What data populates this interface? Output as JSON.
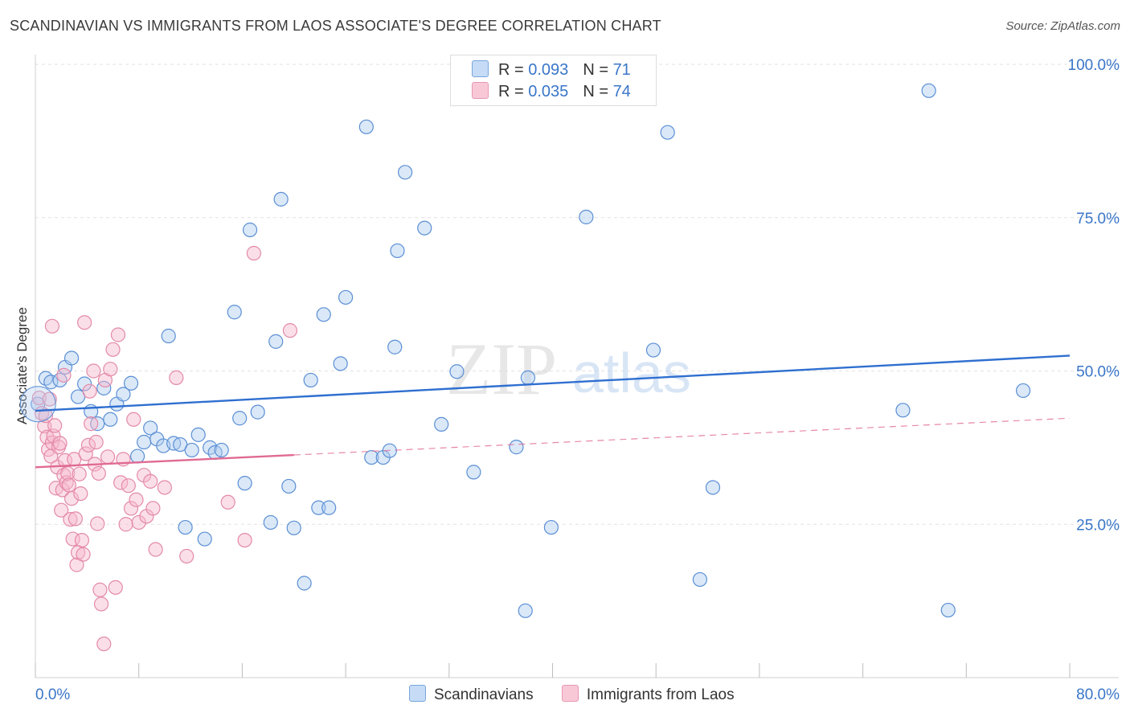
{
  "title": "SCANDINAVIAN VS IMMIGRANTS FROM LAOS ASSOCIATE'S DEGREE CORRELATION CHART",
  "source": "Source: ZipAtlas.com",
  "watermark": {
    "zip": "ZIP",
    "atlas": "atlas"
  },
  "legend": {
    "rows": [
      {
        "r_label": "R = ",
        "r_value": "0.093",
        "n_label": "N = ",
        "n_value": "71"
      },
      {
        "r_label": "R = ",
        "r_value": "0.035",
        "n_label": "N = ",
        "n_value": "74"
      }
    ]
  },
  "chart_data": {
    "type": "scatter",
    "title": "SCANDINAVIAN VS IMMIGRANTS FROM LAOS ASSOCIATE'S DEGREE CORRELATION CHART",
    "xlabel": "",
    "ylabel": "Associate's Degree",
    "xlim": [
      0,
      80
    ],
    "ylim": [
      0,
      100
    ],
    "x_tick_labels": [
      "0.0%",
      "80.0%"
    ],
    "y_ticks": [
      25,
      50,
      75,
      100
    ],
    "y_tick_labels": [
      "25.0%",
      "50.0%",
      "75.0%",
      "100.0%"
    ],
    "grid": true,
    "colors": {
      "scandinavians_fill": "#aecbf0",
      "scandinavians_stroke": "#5b8fd4",
      "scandinavians_line": "#2f6fd0",
      "laos_fill": "#f7b9cc",
      "laos_stroke": "#e38aa8",
      "laos_line": "#e06a93",
      "axis_label": "#3a76c8",
      "grid": "#e2e2e2"
    },
    "series": [
      {
        "name": "Scandinavians",
        "r": 0.093,
        "n": 71,
        "trend": {
          "x": [
            0,
            80
          ],
          "y": [
            43.5,
            52.5
          ],
          "dashed_from": null
        },
        "points": [
          [
            0.2,
            44.6
          ],
          [
            0.8,
            48.8
          ],
          [
            1.2,
            48.2
          ],
          [
            1.9,
            48.5
          ],
          [
            2.3,
            50.6
          ],
          [
            2.8,
            52.1
          ],
          [
            3.3,
            45.8
          ],
          [
            3.8,
            47.9
          ],
          [
            4.3,
            43.4
          ],
          [
            4.8,
            41.4
          ],
          [
            5.3,
            47.2
          ],
          [
            5.8,
            42.1
          ],
          [
            6.3,
            44.6
          ],
          [
            6.8,
            46.2
          ],
          [
            7.4,
            48.0
          ],
          [
            7.9,
            36.1
          ],
          [
            8.4,
            38.4
          ],
          [
            8.9,
            40.7
          ],
          [
            9.4,
            38.9
          ],
          [
            9.9,
            37.8
          ],
          [
            10.3,
            55.7
          ],
          [
            10.7,
            38.2
          ],
          [
            11.2,
            38.0
          ],
          [
            11.6,
            24.5
          ],
          [
            12.1,
            37.1
          ],
          [
            12.6,
            39.6
          ],
          [
            13.1,
            22.6
          ],
          [
            13.5,
            37.5
          ],
          [
            13.9,
            36.7
          ],
          [
            14.4,
            37.1
          ],
          [
            15.4,
            59.6
          ],
          [
            15.8,
            42.3
          ],
          [
            16.2,
            31.7
          ],
          [
            16.6,
            73.0
          ],
          [
            17.2,
            43.3
          ],
          [
            18.2,
            25.3
          ],
          [
            18.6,
            54.8
          ],
          [
            19.0,
            78.0
          ],
          [
            19.6,
            31.2
          ],
          [
            20.0,
            24.4
          ],
          [
            20.8,
            15.4
          ],
          [
            21.3,
            48.5
          ],
          [
            21.9,
            27.7
          ],
          [
            22.3,
            59.2
          ],
          [
            22.7,
            27.7
          ],
          [
            23.6,
            51.2
          ],
          [
            24.0,
            62.0
          ],
          [
            25.6,
            89.8
          ],
          [
            26.0,
            35.9
          ],
          [
            26.9,
            35.9
          ],
          [
            27.4,
            37.0
          ],
          [
            27.8,
            53.9
          ],
          [
            28.0,
            69.6
          ],
          [
            28.6,
            82.4
          ],
          [
            30.1,
            73.3
          ],
          [
            31.4,
            41.3
          ],
          [
            32.6,
            49.9
          ],
          [
            33.9,
            33.5
          ],
          [
            37.2,
            37.6
          ],
          [
            37.9,
            10.9
          ],
          [
            38.1,
            48.9
          ],
          [
            39.9,
            24.5
          ],
          [
            42.6,
            75.1
          ],
          [
            47.8,
            53.4
          ],
          [
            48.9,
            88.9
          ],
          [
            51.4,
            16.0
          ],
          [
            52.4,
            31.0
          ],
          [
            67.1,
            43.6
          ],
          [
            69.1,
            95.7
          ],
          [
            70.6,
            11.0
          ],
          [
            76.4,
            46.8
          ]
        ]
      },
      {
        "name": "Immigrants from Laos",
        "r": 0.035,
        "n": 74,
        "trend": {
          "x": [
            0,
            80
          ],
          "y": [
            34.3,
            42.3
          ],
          "solid_until_x": 20
        },
        "points": [
          [
            0.3,
            45.6
          ],
          [
            0.5,
            43.1
          ],
          [
            0.7,
            41.0
          ],
          [
            0.9,
            39.2
          ],
          [
            1.0,
            37.2
          ],
          [
            1.1,
            45.4
          ],
          [
            1.2,
            36.1
          ],
          [
            1.3,
            38.3
          ],
          [
            1.4,
            39.4
          ],
          [
            1.5,
            41.1
          ],
          [
            1.6,
            30.9
          ],
          [
            1.7,
            34.3
          ],
          [
            1.8,
            37.6
          ],
          [
            1.9,
            38.2
          ],
          [
            2.0,
            27.3
          ],
          [
            2.1,
            30.6
          ],
          [
            2.2,
            33.0
          ],
          [
            2.3,
            35.4
          ],
          [
            2.4,
            31.8
          ],
          [
            2.5,
            33.3
          ],
          [
            2.6,
            31.4
          ],
          [
            2.7,
            25.8
          ],
          [
            2.8,
            29.2
          ],
          [
            2.9,
            22.6
          ],
          [
            3.0,
            35.6
          ],
          [
            3.1,
            25.9
          ],
          [
            3.2,
            18.4
          ],
          [
            3.3,
            20.4
          ],
          [
            3.4,
            33.2
          ],
          [
            3.5,
            30.0
          ],
          [
            3.6,
            22.4
          ],
          [
            3.7,
            20.1
          ],
          [
            3.8,
            57.9
          ],
          [
            3.9,
            36.5
          ],
          [
            4.1,
            37.9
          ],
          [
            4.2,
            46.7
          ],
          [
            4.3,
            41.4
          ],
          [
            4.5,
            50.0
          ],
          [
            4.6,
            34.8
          ],
          [
            4.7,
            38.4
          ],
          [
            4.8,
            25.1
          ],
          [
            4.9,
            33.3
          ],
          [
            5.0,
            14.3
          ],
          [
            5.1,
            12.0
          ],
          [
            5.3,
            5.5
          ],
          [
            5.4,
            48.5
          ],
          [
            5.6,
            36.0
          ],
          [
            5.8,
            50.3
          ],
          [
            6.0,
            53.5
          ],
          [
            6.2,
            14.7
          ],
          [
            6.4,
            55.9
          ],
          [
            6.6,
            31.8
          ],
          [
            6.8,
            35.6
          ],
          [
            7.0,
            25.0
          ],
          [
            7.2,
            31.3
          ],
          [
            7.4,
            27.6
          ],
          [
            7.6,
            42.1
          ],
          [
            7.8,
            29.0
          ],
          [
            8.0,
            25.3
          ],
          [
            8.4,
            33.0
          ],
          [
            8.6,
            26.3
          ],
          [
            8.9,
            32.0
          ],
          [
            9.1,
            27.6
          ],
          [
            9.3,
            20.9
          ],
          [
            10.0,
            31.0
          ],
          [
            10.9,
            48.9
          ],
          [
            11.7,
            19.8
          ],
          [
            14.9,
            28.6
          ],
          [
            16.2,
            22.4
          ],
          [
            16.9,
            69.2
          ],
          [
            19.7,
            56.6
          ],
          [
            1.3,
            57.3
          ],
          [
            0.8,
            42.7
          ],
          [
            2.2,
            49.3
          ]
        ]
      }
    ]
  },
  "bottom_legend": {
    "items": [
      {
        "label": "Scandinavians"
      },
      {
        "label": "Immigrants from Laos"
      }
    ]
  }
}
